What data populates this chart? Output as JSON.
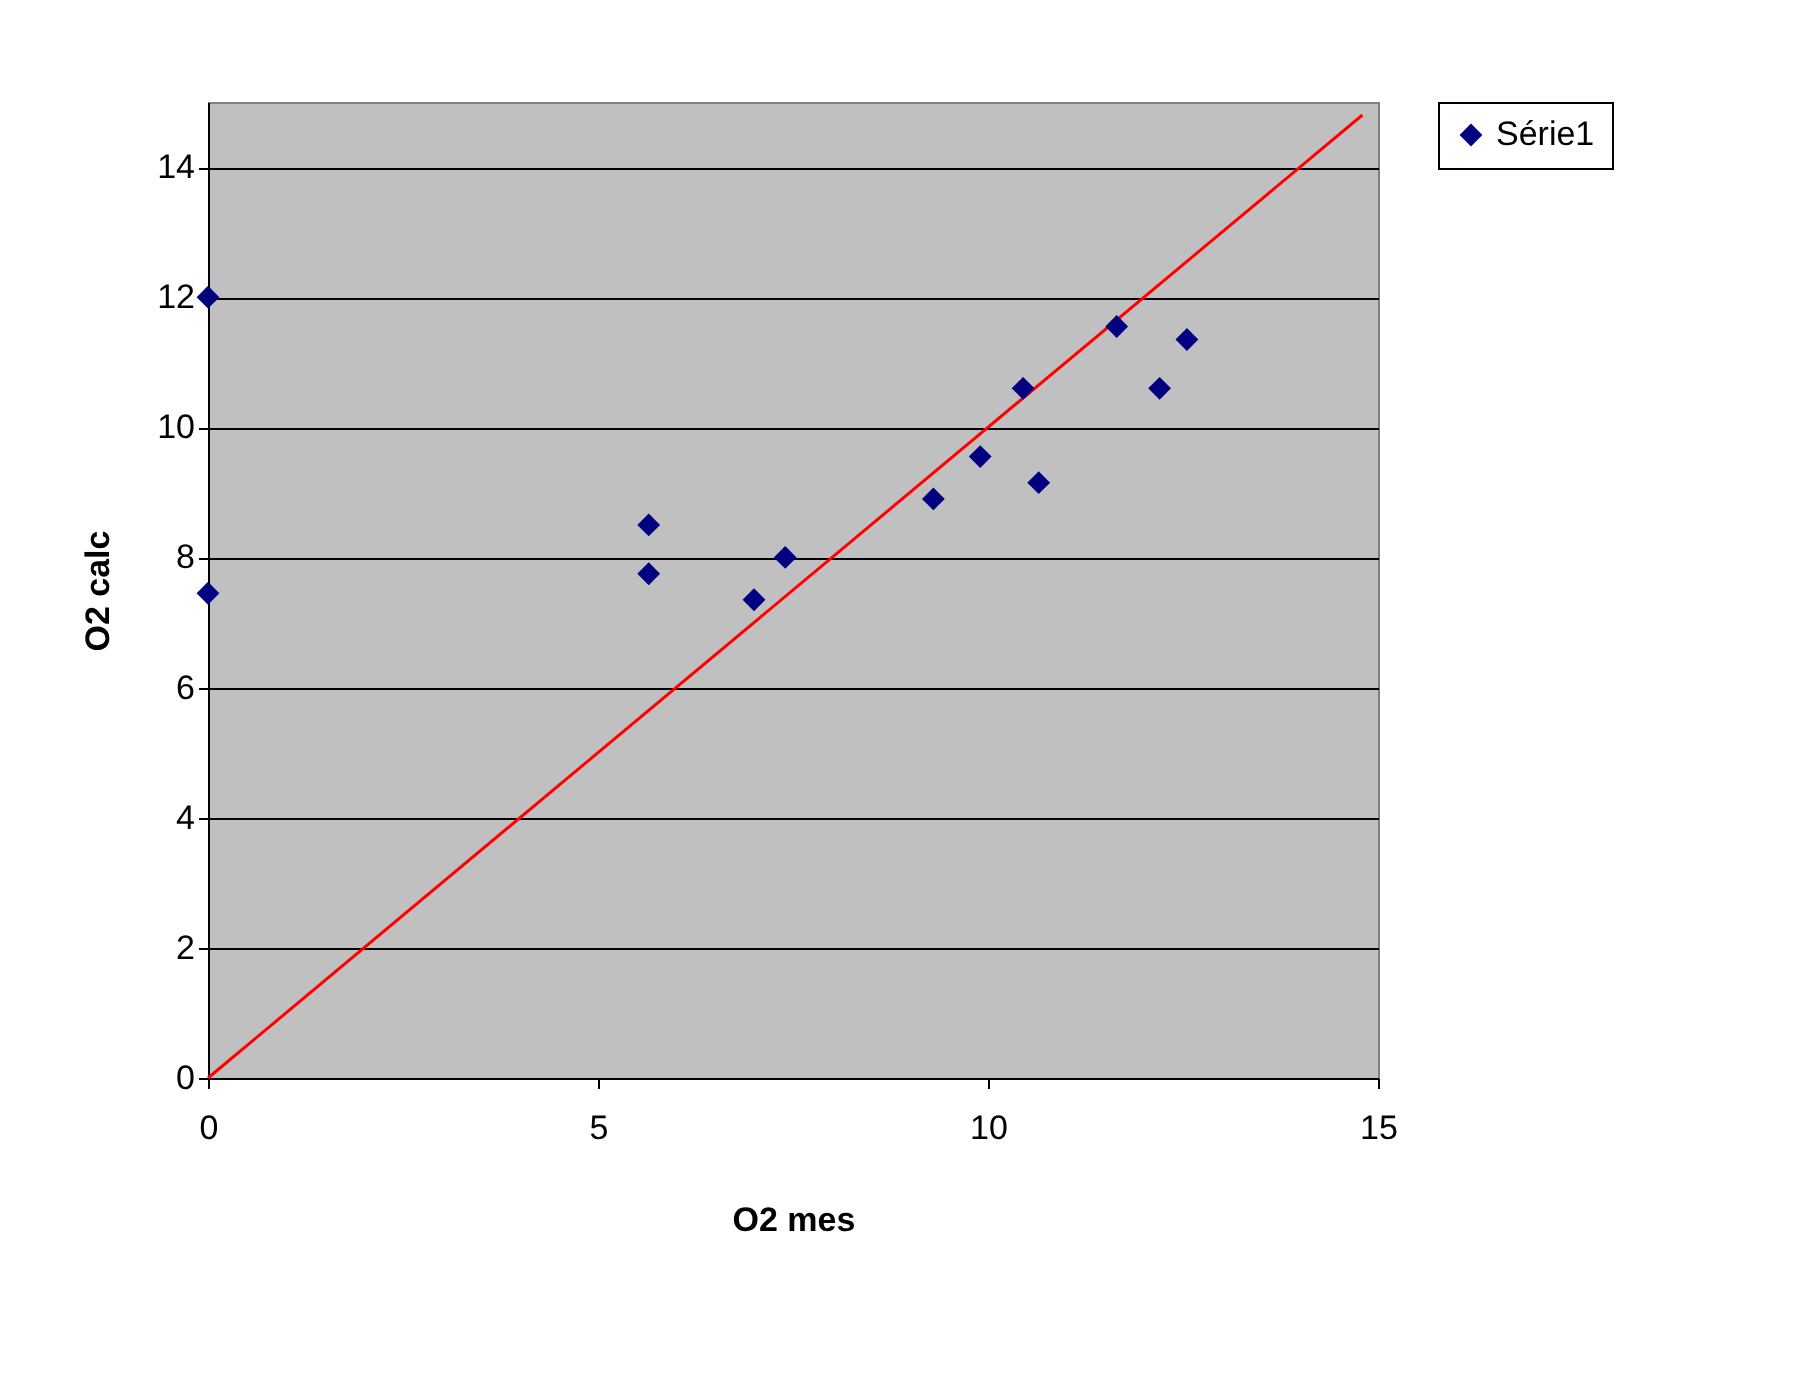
{
  "chart_data": {
    "type": "scatter",
    "xlabel": "O2 mes",
    "ylabel": "O2 calc",
    "xlim": [
      0,
      15
    ],
    "xticks": [
      0,
      5,
      10,
      15
    ],
    "ylim": [
      0,
      15
    ],
    "yticks": [
      0,
      2,
      4,
      6,
      8,
      10,
      12,
      14
    ],
    "grid": "y",
    "legend": "right",
    "marker": "diamond",
    "series": [
      {
        "name": "Série1",
        "color": "#000080",
        "x": [
          0,
          0,
          5.65,
          5.65,
          7.0,
          7.4,
          9.3,
          9.9,
          10.45,
          10.65,
          11.65,
          12.2,
          12.55
        ],
        "values": [
          12.0,
          7.45,
          8.5,
          7.75,
          7.35,
          8.0,
          8.9,
          9.55,
          10.6,
          9.15,
          11.55,
          10.6,
          11.35
        ]
      },
      {
        "type": "line",
        "color": "#ff0000",
        "marker": "none",
        "x": [
          0,
          14.8
        ],
        "values": [
          0,
          14.8
        ]
      }
    ]
  }
}
